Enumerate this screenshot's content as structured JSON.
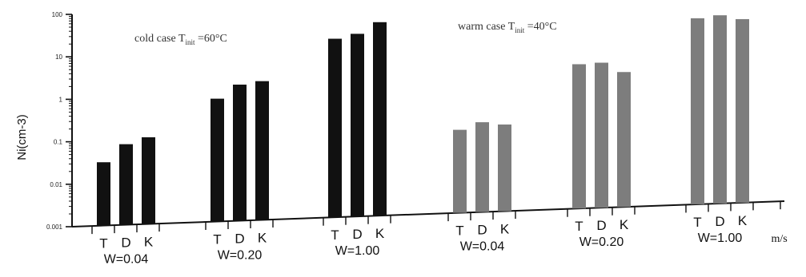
{
  "chart_data": {
    "type": "bar",
    "ylabel": "Ni(cm-3)",
    "yscale": "log",
    "ylim": [
      0.001,
      100
    ],
    "y_ticks": [
      "0.001",
      "0.01",
      "0.1",
      "1",
      "10",
      "100"
    ],
    "bar_labels": [
      "T",
      "D",
      "K"
    ],
    "unit": "m/s",
    "annotations": [
      {
        "text_main": "cold case T",
        "subscript": "init",
        "text_after": " =60°C"
      },
      {
        "text_main": "warm case T",
        "subscript": "init",
        "text_after": " =40°C"
      }
    ],
    "groups": [
      {
        "case": "cold",
        "label": "W=0.04",
        "values": [
          0.031,
          0.079,
          0.11
        ]
      },
      {
        "case": "cold",
        "label": "W=0.20",
        "values": [
          0.78,
          1.6,
          1.85
        ]
      },
      {
        "case": "cold",
        "label": "W=1.00",
        "values": [
          16,
          20,
          36
        ]
      },
      {
        "case": "warm",
        "label": "W=0.04",
        "values": [
          0.09,
          0.13,
          0.11
        ]
      },
      {
        "case": "warm",
        "label": "W=0.20",
        "values": [
          2.5,
          2.6,
          1.5
        ]
      },
      {
        "case": "warm",
        "label": "W=1.00",
        "values": [
          24,
          27,
          21
        ]
      }
    ],
    "colors": {
      "cold": "#111111",
      "warm": "#7d7d7d",
      "axis": "#111111"
    }
  }
}
